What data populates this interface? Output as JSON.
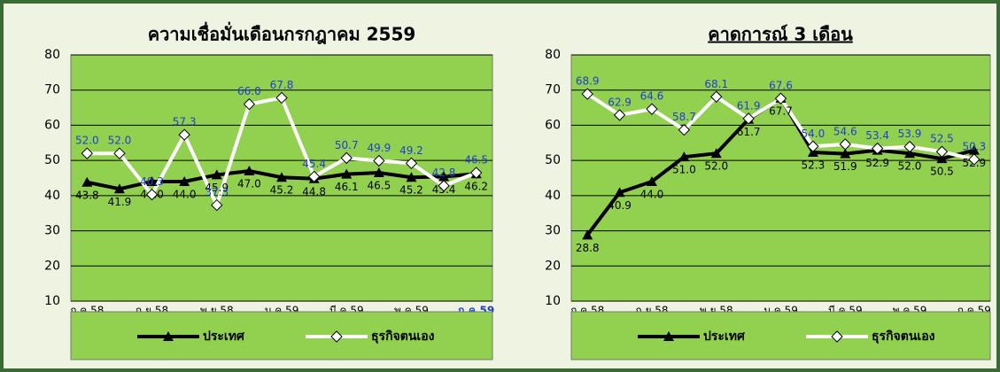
{
  "chart_data": [
    {
      "type": "line",
      "title": "ความเชื่อมั่นเดือนกรกฎาคม 2559",
      "categories": [
        "ก.ค.58",
        null,
        "ก.ย.58",
        null,
        "พ.ย.58",
        null,
        "ม.ค.59",
        null,
        "มี.ค.59",
        null,
        "พ.ค.59",
        null,
        "ก.ค.59"
      ],
      "series": [
        {
          "name": "ประเทศ",
          "color": "#000000",
          "label_color": "#000000",
          "values": [
            43.8,
            41.9,
            44.0,
            44.0,
            45.9,
            47.0,
            45.2,
            44.8,
            46.1,
            46.5,
            45.2,
            45.4,
            46.2
          ]
        },
        {
          "name": "ธุรกิจตนเอง",
          "color": "#ffffff",
          "label_color": "#1f3fd0",
          "values": [
            52.0,
            52.0,
            40.3,
            57.3,
            37.3,
            66.0,
            67.8,
            45.4,
            50.7,
            49.9,
            49.2,
            42.8,
            46.5
          ]
        }
      ],
      "ylim": [
        10,
        80
      ],
      "yticks": [
        10,
        20,
        30,
        40,
        50,
        60,
        70,
        80
      ],
      "grid": true
    },
    {
      "type": "line",
      "title": "คาดการณ์ 3 เดือน",
      "categories": [
        "ก.ค.58",
        null,
        "ก.ย.58",
        null,
        "พ.ย.58",
        null,
        "ม.ค.59",
        null,
        "มี.ค.59",
        null,
        "พ.ค.59",
        null,
        "ก.ค.59"
      ],
      "series": [
        {
          "name": "ประเทศ",
          "color": "#000000",
          "label_color": "#000000",
          "values": [
            28.8,
            40.9,
            44.0,
            51.0,
            52.0,
            61.7,
            67.7,
            52.3,
            51.9,
            52.9,
            52.0,
            50.5,
            52.9
          ]
        },
        {
          "name": "ธุรกิจตนเอง",
          "color": "#ffffff",
          "label_color": "#1f3fd0",
          "values": [
            68.9,
            62.9,
            64.6,
            58.7,
            68.1,
            61.9,
            67.6,
            54.0,
            54.6,
            53.4,
            53.9,
            52.5,
            50.3
          ]
        }
      ],
      "ylim": [
        10,
        80
      ],
      "yticks": [
        10,
        20,
        30,
        40,
        50,
        60,
        70,
        80
      ],
      "grid": true
    }
  ]
}
